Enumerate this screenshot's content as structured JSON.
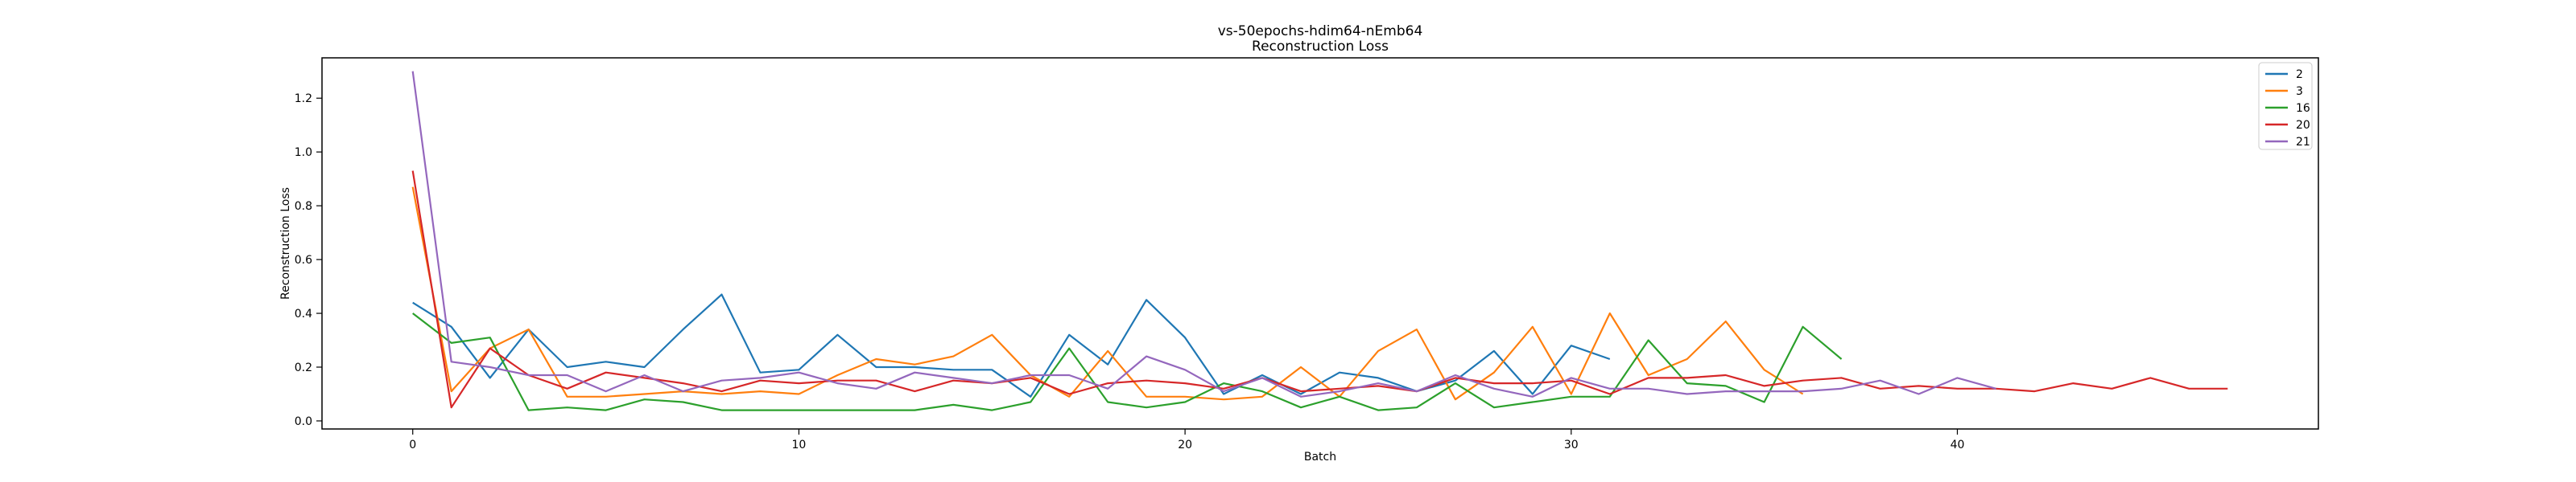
{
  "chart_data": {
    "type": "line",
    "title": "vs-50epochs-hdim64-nEmb64",
    "subtitle": "Reconstruction Loss",
    "xlabel": "Batch",
    "ylabel": "Reconstruction Loss",
    "xlim": [
      -2.35,
      49.35
    ],
    "ylim": [
      -0.03,
      1.35
    ],
    "xticks": [
      "0",
      "10",
      "20",
      "30",
      "40"
    ],
    "yticks": [
      "0.0",
      "0.2",
      "0.4",
      "0.6",
      "0.8",
      "1.0",
      "1.2"
    ],
    "legend_position": "top-right",
    "grid": false,
    "series": [
      {
        "name": "2",
        "color": "#1f77b4",
        "values": [
          0.44,
          0.35,
          0.16,
          0.34,
          0.2,
          0.22,
          0.2,
          0.34,
          0.47,
          0.18,
          0.19,
          0.32,
          0.2,
          0.2,
          0.19,
          0.19,
          0.09,
          0.32,
          0.21,
          0.45,
          0.31,
          0.1,
          0.17,
          0.1,
          0.18,
          0.16,
          0.11,
          0.15,
          0.26,
          0.1,
          0.28,
          0.23
        ]
      },
      {
        "name": "3",
        "color": "#ff7f0e",
        "values": [
          0.87,
          0.11,
          0.27,
          0.34,
          0.09,
          0.09,
          0.1,
          0.11,
          0.1,
          0.11,
          0.1,
          0.17,
          0.23,
          0.21,
          0.24,
          0.32,
          0.17,
          0.09,
          0.26,
          0.09,
          0.09,
          0.08,
          0.09,
          0.2,
          0.09,
          0.26,
          0.34,
          0.08,
          0.18,
          0.35,
          0.1,
          0.4,
          0.17,
          0.23,
          0.37,
          0.19,
          0.1
        ]
      },
      {
        "name": "16",
        "color": "#2ca02c",
        "values": [
          0.4,
          0.29,
          0.31,
          0.04,
          0.05,
          0.04,
          0.08,
          0.07,
          0.04,
          0.04,
          0.04,
          0.04,
          0.04,
          0.04,
          0.06,
          0.04,
          0.07,
          0.27,
          0.07,
          0.05,
          0.07,
          0.14,
          0.11,
          0.05,
          0.09,
          0.04,
          0.05,
          0.14,
          0.05,
          0.07,
          0.09,
          0.09,
          0.3,
          0.14,
          0.13,
          0.07,
          0.35,
          0.23
        ]
      },
      {
        "name": "20",
        "color": "#d62728",
        "values": [
          0.93,
          0.05,
          0.27,
          0.17,
          0.12,
          0.18,
          0.16,
          0.14,
          0.11,
          0.15,
          0.14,
          0.15,
          0.15,
          0.11,
          0.15,
          0.14,
          0.16,
          0.1,
          0.14,
          0.15,
          0.14,
          0.12,
          0.16,
          0.11,
          0.12,
          0.13,
          0.11,
          0.16,
          0.14,
          0.14,
          0.15,
          0.1,
          0.16,
          0.16,
          0.17,
          0.13,
          0.15,
          0.16,
          0.12,
          0.13,
          0.12,
          0.12,
          0.11,
          0.14,
          0.12,
          0.16,
          0.12,
          0.12
        ]
      },
      {
        "name": "21",
        "color": "#9467bd",
        "values": [
          1.3,
          0.22,
          0.2,
          0.17,
          0.17,
          0.11,
          0.17,
          0.11,
          0.15,
          0.16,
          0.18,
          0.14,
          0.12,
          0.18,
          0.16,
          0.14,
          0.17,
          0.17,
          0.12,
          0.24,
          0.19,
          0.11,
          0.16,
          0.09,
          0.11,
          0.14,
          0.11,
          0.17,
          0.12,
          0.09,
          0.16,
          0.12,
          0.12,
          0.1,
          0.11,
          0.11,
          0.11,
          0.12,
          0.15,
          0.1,
          0.16,
          0.12
        ]
      }
    ]
  }
}
